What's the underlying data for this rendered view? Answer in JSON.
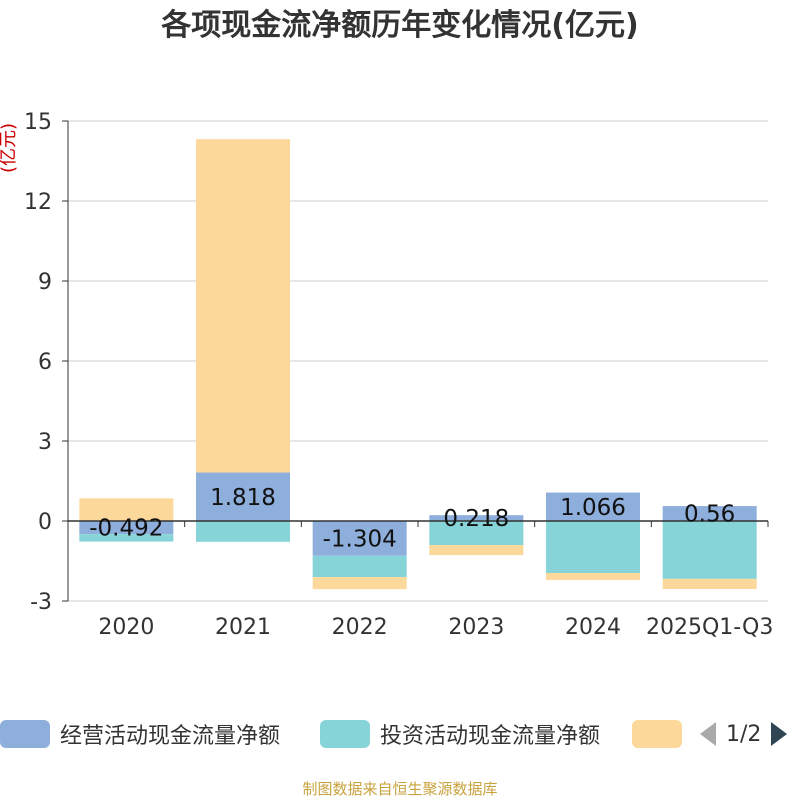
{
  "chart_data": {
    "type": "bar",
    "stacked": true,
    "title": "各项现金流净额历年变化情况(亿元)",
    "ylabel": "(亿元)",
    "xlabel": "",
    "ylim": [
      -3,
      15
    ],
    "yticks": [
      -3,
      0,
      3,
      6,
      9,
      12,
      15
    ],
    "ytick_labels": [
      "-3",
      "0",
      "3",
      "6",
      "9",
      "12",
      "15"
    ],
    "grid": true,
    "categories": [
      "2020",
      "2021",
      "2022",
      "2023",
      "2024",
      "2025Q1-Q3"
    ],
    "series": [
      {
        "name": "经营活动现金流量净额",
        "color": "#8eaedc",
        "values": [
          -0.492,
          1.818,
          -1.304,
          0.218,
          1.066,
          0.56
        ],
        "labels": [
          "-0.492",
          "1.818",
          "-1.304",
          "0.218",
          "1.066",
          "0.56"
        ]
      },
      {
        "name": "投资活动现金流量净额",
        "color": "#86d4d8",
        "values": [
          -0.28,
          -0.78,
          -0.8,
          -0.9,
          -1.95,
          -2.17
        ]
      },
      {
        "name": "",
        "color": "#fcd89a",
        "values": [
          0.85,
          12.5,
          -0.45,
          -0.38,
          -0.26,
          -0.38
        ]
      }
    ]
  },
  "legend": {
    "items": [
      {
        "label": "经营活动现金流量净额",
        "color": "#8eaedc"
      },
      {
        "label": "投资活动现金流量净额",
        "color": "#86d4d8"
      },
      {
        "label": "",
        "color": "#fcd89a"
      }
    ],
    "page_text": "1/2"
  },
  "source": "制图数据来自恒生聚源数据库"
}
